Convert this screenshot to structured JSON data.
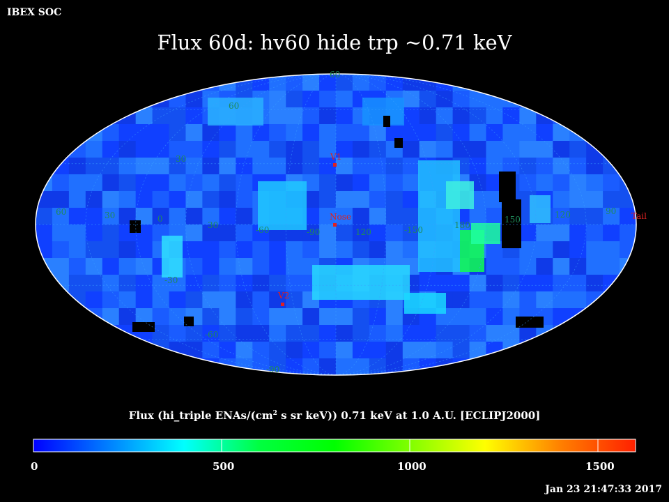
{
  "header": {
    "org": "IBEX SOC",
    "title": "Flux   60d: hv60 hide trp ~0.71 keV"
  },
  "colorbar": {
    "caption_pre": "Flux (hi_triple ENAs/(cm",
    "caption_sup": "2",
    "caption_post": " s sr keV))  0.71 keV at 1.0 A.U. [ECLIPJ2000]",
    "range": [
      0,
      1600
    ],
    "ticks": [
      {
        "value": 0,
        "label": "0"
      },
      {
        "value": 500,
        "label": "500"
      },
      {
        "value": 1000,
        "label": "1000"
      },
      {
        "value": 1500,
        "label": "1500"
      }
    ],
    "stops": [
      "#0000ff",
      "#0080ff",
      "#00ffff",
      "#00ff40",
      "#00ff00",
      "#80ff00",
      "#ffff00",
      "#ff8000",
      "#ff2000"
    ]
  },
  "footer": {
    "timestamp": "Jan 23 21:47:33 2017"
  },
  "map": {
    "projection": "Mollweide",
    "frame": "ECLIPJ2000",
    "lon_labels": [
      "60",
      "30",
      "0",
      "30",
      "-60",
      "-90",
      "120",
      "-150",
      "180",
      "150",
      "120",
      "90"
    ],
    "lat_labels": [
      "60",
      "30",
      "60",
      "30",
      "-30",
      "-60",
      "-90"
    ],
    "markers": [
      {
        "name": "V1",
        "label": "V1"
      },
      {
        "name": "Nose",
        "label": "Nose"
      },
      {
        "name": "V2",
        "label": "V2"
      },
      {
        "name": "Tail",
        "label": "Tail"
      }
    ],
    "colors": {
      "background_flux": "#1a5cff",
      "no_data": "#000000",
      "grid": "#3aa0ff",
      "outline": "#ffffff"
    }
  }
}
